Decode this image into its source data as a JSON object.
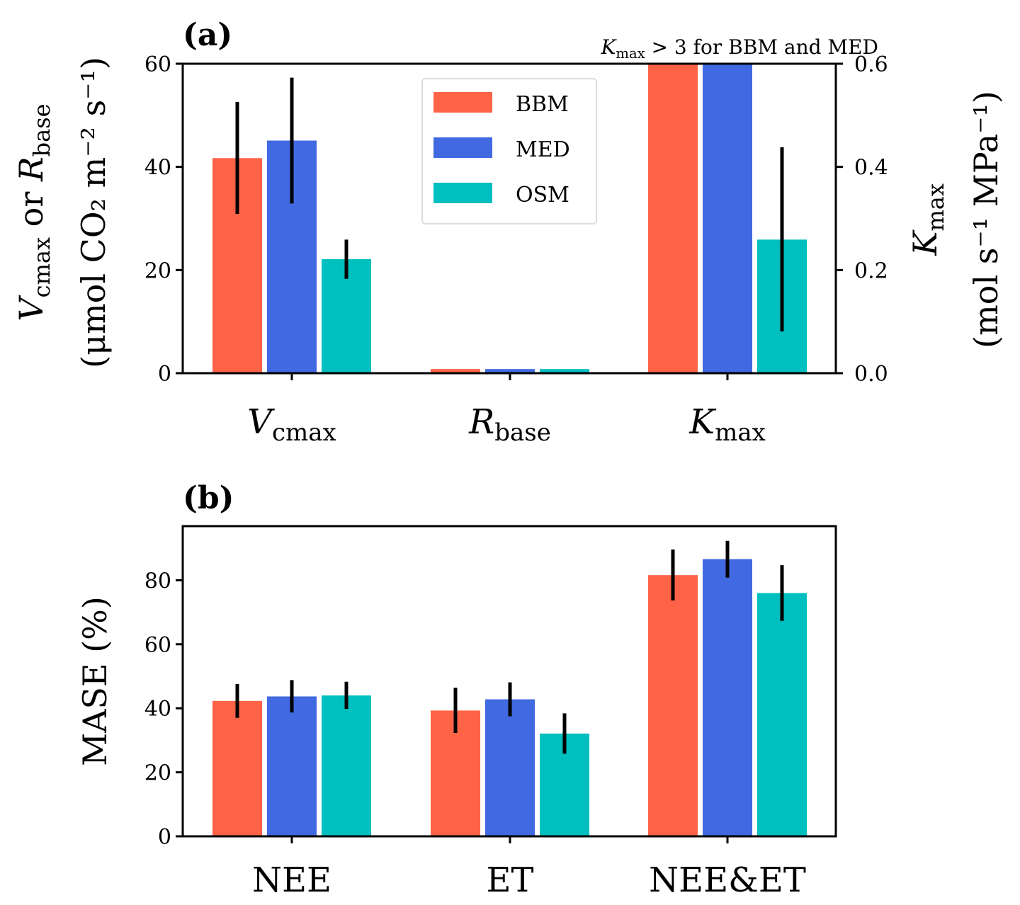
{
  "chart_data": [
    {
      "type": "bar",
      "panel_label": "(a)",
      "categories": [
        "Vcmax",
        "Rbase",
        "Kmax"
      ],
      "category_labels": [
        {
          "main": "V",
          "sub": "cmax"
        },
        {
          "main": "R",
          "sub": "base"
        },
        {
          "main": "K",
          "sub": "max"
        }
      ],
      "series": [
        {
          "name": "BBM",
          "color": "#FF6347",
          "values": [
            41.7,
            0.8,
            3.0
          ],
          "err_low": [
            30.9,
            null,
            null
          ],
          "err_high": [
            52.6,
            null,
            null
          ]
        },
        {
          "name": "MED",
          "color": "#4169E1",
          "values": [
            45.1,
            0.8,
            3.0
          ],
          "err_low": [
            32.9,
            null,
            null
          ],
          "err_high": [
            57.3,
            null,
            null
          ]
        },
        {
          "name": "OSM",
          "color": "#00BFBF",
          "values": [
            22.1,
            0.8,
            0.259
          ],
          "err_low": [
            18.3,
            null,
            0.081
          ],
          "err_high": [
            25.9,
            null,
            0.438
          ]
        }
      ],
      "axis_assignment": [
        "left",
        "left",
        "right"
      ],
      "ylabel_left": {
        "line1_parts": [
          {
            "t": "V",
            "i": true
          },
          {
            "t": "cmax",
            "s": true
          },
          {
            "t": " or "
          },
          {
            "t": "R",
            "i": true
          },
          {
            "t": "base",
            "s": true
          }
        ],
        "line2": "(μmol CO₂ m⁻² s⁻¹)"
      },
      "ylabel_right": {
        "line1_parts": [
          {
            "t": "K",
            "i": true
          },
          {
            "t": "max",
            "s": true
          }
        ],
        "line2": "(mol s⁻¹ MPa⁻¹)"
      },
      "ylim_left": [
        0,
        60
      ],
      "ylim_right": [
        0,
        0.6
      ],
      "yticks_left": [
        "0",
        "20",
        "40",
        "60"
      ],
      "yticks_right": [
        "0.0",
        "0.2",
        "0.4",
        "0.6"
      ],
      "annotation": {
        "main": "K",
        "sub": "max",
        "rest": " > 3 for BBM and MED"
      },
      "legend": {
        "entries": [
          "BBM",
          "MED",
          "OSM"
        ],
        "position": "upper-center"
      },
      "grid": false
    },
    {
      "type": "bar",
      "panel_label": "(b)",
      "categories": [
        "NEE",
        "ET",
        "NEE&ET"
      ],
      "series": [
        {
          "name": "BBM",
          "color": "#FF6347",
          "values": [
            42.3,
            39.3,
            81.6
          ],
          "err_low": [
            37.0,
            32.3,
            73.7
          ],
          "err_high": [
            47.6,
            46.4,
            89.6
          ]
        },
        {
          "name": "MED",
          "color": "#4169E1",
          "values": [
            43.7,
            42.8,
            86.6
          ],
          "err_low": [
            38.7,
            37.5,
            80.8
          ],
          "err_high": [
            48.8,
            48.1,
            92.3
          ]
        },
        {
          "name": "OSM",
          "color": "#00BFBF",
          "values": [
            44.0,
            32.1,
            76.0
          ],
          "err_low": [
            39.8,
            25.8,
            67.3
          ],
          "err_high": [
            48.3,
            38.4,
            84.7
          ]
        }
      ],
      "ylabel": "MASE (%)",
      "ylim": [
        0,
        96.9
      ],
      "yticks": [
        "0",
        "20",
        "40",
        "60",
        "80"
      ],
      "grid": false
    }
  ]
}
